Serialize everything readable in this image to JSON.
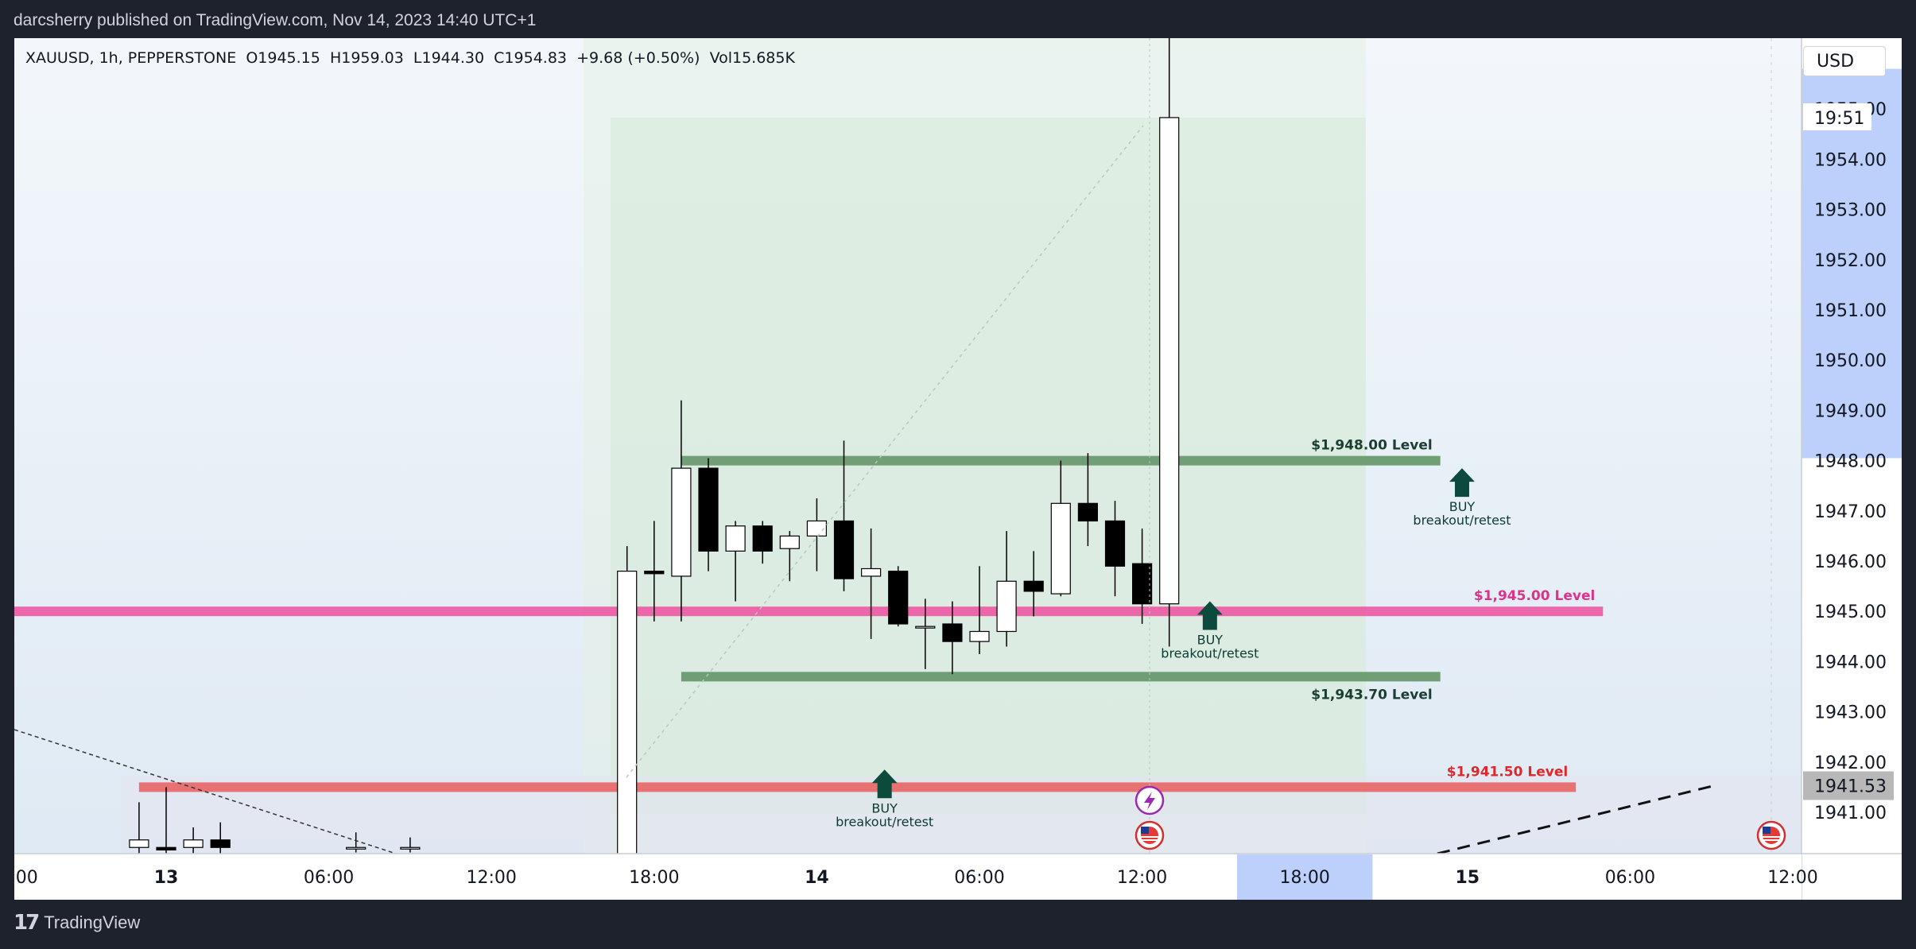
{
  "header": {
    "published_text": "darcsherry published on TradingView.com, Nov 14, 2023 14:40 UTC+1"
  },
  "footer": {
    "brand": "TradingView",
    "logo_glyph": "17"
  },
  "legend": {
    "symbol": "XAUUSD, 1h, PEPPERSTONE",
    "open": "O1945.15",
    "high": "H1959.03",
    "low": "L1944.30",
    "close": "C1954.83",
    "change": "+9.68 (+0.50%)",
    "volume": "Vol15.685K"
  },
  "currency": "USD",
  "price_axis": {
    "ticks": [
      "1941.00",
      "1942.00",
      "1943.00",
      "1944.00",
      "1945.00",
      "1946.00",
      "1947.00",
      "1948.00",
      "1949.00",
      "1950.00",
      "1951.00",
      "1952.00",
      "1953.00",
      "1954.00",
      "1955.00"
    ],
    "countdown": "19:51",
    "last_price_label": "1941.53"
  },
  "time_axis": {
    "labels": [
      {
        "t": -12,
        "text": ":00"
      },
      {
        "t": 0,
        "text": "13"
      },
      {
        "t": 6,
        "text": "06:00"
      },
      {
        "t": 12,
        "text": "12:00"
      },
      {
        "t": 18,
        "text": "18:00"
      },
      {
        "t": 24,
        "text": "14"
      },
      {
        "t": 30,
        "text": "06:00"
      },
      {
        "t": 36,
        "text": "12:00"
      },
      {
        "t": 42,
        "text": "18:00"
      },
      {
        "t": 48,
        "text": "15"
      },
      {
        "t": 54,
        "text": "06:00"
      },
      {
        "t": 60,
        "text": "12:00"
      }
    ],
    "highlight": {
      "from": 39.5,
      "to": 44.5
    }
  },
  "colors": {
    "up": "#ffffff",
    "down": "#000000",
    "green_level": "#6a9a6e",
    "pink_level": "#ec5fa6",
    "red_level": "#e86b6b",
    "arrow": "#0d4a3e",
    "axis_highlight": "#bcd0fb"
  },
  "levels": [
    {
      "price": 1948.0,
      "label": "$1,948.00 Level",
      "color": "#6a9a6e",
      "text_color": "#1b3d32",
      "from_t": 19,
      "to_t": 47,
      "label_pos": "above"
    },
    {
      "price": 1945.0,
      "label": "$1,945.00 Level",
      "color": "#ec5fa6",
      "text_color": "#e0318b",
      "from_t": -12,
      "to_t": 53,
      "label_pos": "above"
    },
    {
      "price": 1943.7,
      "label": "$1,943.70 Level",
      "color": "#6a9a6e",
      "text_color": "#1b3d32",
      "from_t": 19,
      "to_t": 47,
      "label_pos": "below"
    },
    {
      "price": 1941.5,
      "label": "$1,941.50 Level",
      "color": "#e86b6b",
      "text_color": "#e0272c",
      "from_t": -1,
      "to_t": 52,
      "label_pos": "above"
    }
  ],
  "annotations": [
    {
      "t": 26.5,
      "price": 1941.85,
      "line1": "BUY",
      "line2": "breakout/retest"
    },
    {
      "t": 38.5,
      "price": 1945.2,
      "line1": "BUY",
      "line2": "breakout/retest"
    },
    {
      "t": 47.8,
      "price": 1947.85,
      "line1": "BUY",
      "line2": "breakout/retest"
    }
  ],
  "chart_data": {
    "type": "candlestick",
    "title": "XAUUSD, 1h, PEPPERSTONE",
    "xlabel": "",
    "ylabel": "",
    "ylim": [
      1940.2,
      1956.4
    ],
    "series": [
      {
        "name": "XAUUSD",
        "candles": [
          {
            "t": -1,
            "o": 1940.3,
            "h": 1941.2,
            "l": 1940.1,
            "c": 1940.45
          },
          {
            "t": 0,
            "o": 1940.3,
            "h": 1941.5,
            "l": 1940.1,
            "c": 1940.25
          },
          {
            "t": 1,
            "o": 1940.3,
            "h": 1940.7,
            "l": 1940.1,
            "c": 1940.45
          },
          {
            "t": 2,
            "o": 1940.45,
            "h": 1940.8,
            "l": 1940.1,
            "c": 1940.3
          },
          {
            "t": 7,
            "o": 1940.3,
            "h": 1940.6,
            "l": 1940.2,
            "c": 1940.3
          },
          {
            "t": 9,
            "o": 1940.3,
            "h": 1940.5,
            "l": 1940.2,
            "c": 1940.3
          },
          {
            "t": 17,
            "o": 1939.8,
            "h": 1946.3,
            "l": 1939.6,
            "c": 1945.8
          },
          {
            "t": 18,
            "o": 1945.8,
            "h": 1946.8,
            "l": 1944.8,
            "c": 1945.75
          },
          {
            "t": 19,
            "o": 1945.7,
            "h": 1949.2,
            "l": 1944.8,
            "c": 1947.85
          },
          {
            "t": 20,
            "o": 1947.85,
            "h": 1948.05,
            "l": 1945.8,
            "c": 1946.2
          },
          {
            "t": 21,
            "o": 1946.2,
            "h": 1946.8,
            "l": 1945.2,
            "c": 1946.7
          },
          {
            "t": 22,
            "o": 1946.7,
            "h": 1946.8,
            "l": 1945.95,
            "c": 1946.2
          },
          {
            "t": 23,
            "o": 1946.25,
            "h": 1946.6,
            "l": 1945.6,
            "c": 1946.5
          },
          {
            "t": 24,
            "o": 1946.5,
            "h": 1947.25,
            "l": 1945.8,
            "c": 1946.8
          },
          {
            "t": 25,
            "o": 1946.8,
            "h": 1948.4,
            "l": 1945.4,
            "c": 1945.65
          },
          {
            "t": 26,
            "o": 1945.7,
            "h": 1946.65,
            "l": 1944.45,
            "c": 1945.85
          },
          {
            "t": 27,
            "o": 1945.8,
            "h": 1945.9,
            "l": 1944.7,
            "c": 1944.75
          },
          {
            "t": 28,
            "o": 1944.7,
            "h": 1945.25,
            "l": 1943.85,
            "c": 1944.7
          },
          {
            "t": 29,
            "o": 1944.75,
            "h": 1945.2,
            "l": 1943.75,
            "c": 1944.4
          },
          {
            "t": 30,
            "o": 1944.4,
            "h": 1945.9,
            "l": 1944.15,
            "c": 1944.6
          },
          {
            "t": 31,
            "o": 1944.6,
            "h": 1946.6,
            "l": 1944.3,
            "c": 1945.6
          },
          {
            "t": 32,
            "o": 1945.6,
            "h": 1946.2,
            "l": 1944.9,
            "c": 1945.4
          },
          {
            "t": 33,
            "o": 1945.35,
            "h": 1948.0,
            "l": 1945.3,
            "c": 1947.15
          },
          {
            "t": 34,
            "o": 1947.15,
            "h": 1948.15,
            "l": 1946.3,
            "c": 1946.8
          },
          {
            "t": 35,
            "o": 1946.8,
            "h": 1947.2,
            "l": 1945.3,
            "c": 1945.9
          },
          {
            "t": 36,
            "o": 1945.95,
            "h": 1946.65,
            "l": 1944.75,
            "c": 1945.15
          },
          {
            "t": 37,
            "o": 1945.15,
            "h": 1959.03,
            "l": 1944.3,
            "c": 1954.83
          }
        ]
      }
    ]
  }
}
